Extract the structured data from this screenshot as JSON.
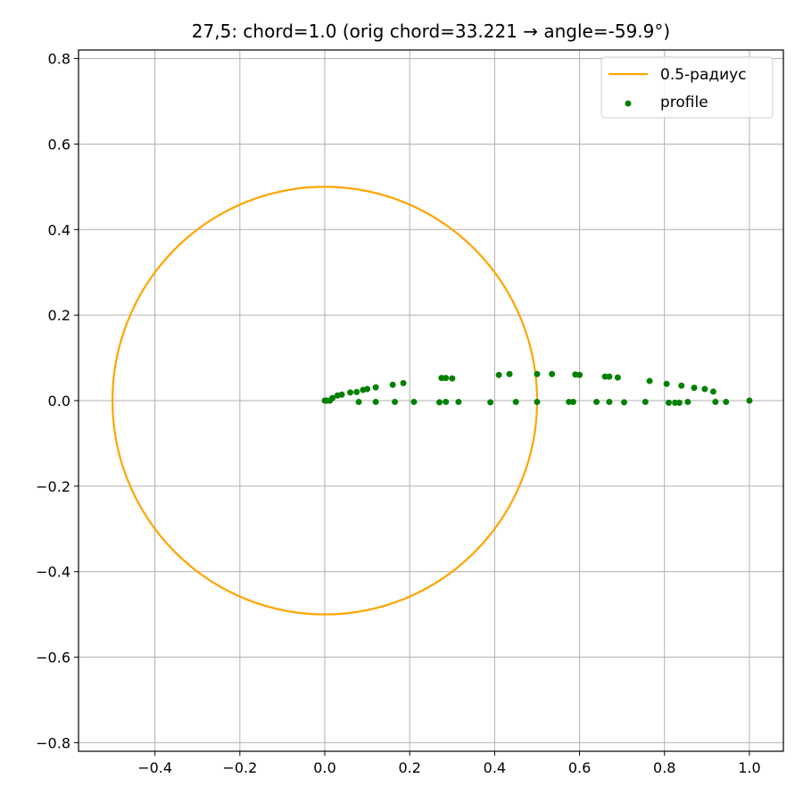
{
  "chart_data": {
    "type": "scatter",
    "title": "27,5: chord=1.0  (orig chord=33.221 → angle=-59.9°)",
    "xlabel": "",
    "ylabel": "",
    "xlim": [
      -0.58,
      1.08
    ],
    "ylim": [
      -0.82,
      0.82
    ],
    "x_ticks": [
      -0.4,
      -0.2,
      0.0,
      0.2,
      0.4,
      0.6,
      0.8,
      1.0
    ],
    "x_tick_labels": [
      "−0.4",
      "−0.2",
      "0.0",
      "0.2",
      "0.4",
      "0.6",
      "0.8",
      "1.0"
    ],
    "y_ticks": [
      0.8,
      0.6,
      0.4,
      0.2,
      0.0,
      -0.2,
      -0.4,
      -0.6,
      -0.8
    ],
    "y_tick_labels": [
      "0.8",
      "0.6",
      "0.4",
      "0.2",
      "0.0",
      "−0.2",
      "−0.4",
      "−0.6",
      "−0.8"
    ],
    "grid": true,
    "legend_position": "top-right",
    "series": [
      {
        "name": "0.5-радиус",
        "kind": "line",
        "color": "#ffa500",
        "circle": {
          "cx": 0.0,
          "cy": 0.0,
          "r": 0.5
        }
      },
      {
        "name": "profile",
        "kind": "scatter",
        "color": "#008000",
        "points": [
          [
            0.0,
            0.0
          ],
          [
            0.004,
            0.0
          ],
          [
            0.012,
            0.0
          ],
          [
            0.018,
            0.006
          ],
          [
            0.03,
            0.012
          ],
          [
            0.04,
            0.014
          ],
          [
            0.06,
            0.019
          ],
          [
            0.075,
            0.02
          ],
          [
            0.09,
            0.025
          ],
          [
            0.1,
            0.027
          ],
          [
            0.12,
            0.031
          ],
          [
            0.16,
            0.037
          ],
          [
            0.185,
            0.041
          ],
          [
            0.275,
            0.053
          ],
          [
            0.285,
            0.053
          ],
          [
            0.3,
            0.052
          ],
          [
            0.41,
            0.06
          ],
          [
            0.435,
            0.062
          ],
          [
            0.5,
            0.062
          ],
          [
            0.535,
            0.062
          ],
          [
            0.59,
            0.061
          ],
          [
            0.6,
            0.06
          ],
          [
            0.66,
            0.056
          ],
          [
            0.67,
            0.056
          ],
          [
            0.69,
            0.054
          ],
          [
            0.765,
            0.046
          ],
          [
            0.805,
            0.039
          ],
          [
            0.84,
            0.035
          ],
          [
            0.87,
            0.03
          ],
          [
            0.895,
            0.027
          ],
          [
            0.915,
            0.021
          ],
          [
            0.08,
            -0.003
          ],
          [
            0.12,
            -0.003
          ],
          [
            0.165,
            -0.003
          ],
          [
            0.21,
            -0.003
          ],
          [
            0.27,
            -0.004
          ],
          [
            0.285,
            -0.003
          ],
          [
            0.315,
            -0.003
          ],
          [
            0.39,
            -0.004
          ],
          [
            0.45,
            -0.003
          ],
          [
            0.5,
            -0.003
          ],
          [
            0.575,
            -0.003
          ],
          [
            0.585,
            -0.003
          ],
          [
            0.64,
            -0.003
          ],
          [
            0.67,
            -0.003
          ],
          [
            0.705,
            -0.004
          ],
          [
            0.755,
            -0.003
          ],
          [
            0.81,
            -0.005
          ],
          [
            0.825,
            -0.005
          ],
          [
            0.835,
            -0.005
          ],
          [
            0.855,
            -0.003
          ],
          [
            0.92,
            -0.003
          ],
          [
            0.945,
            -0.003
          ],
          [
            1.0,
            0.0
          ]
        ]
      }
    ]
  }
}
